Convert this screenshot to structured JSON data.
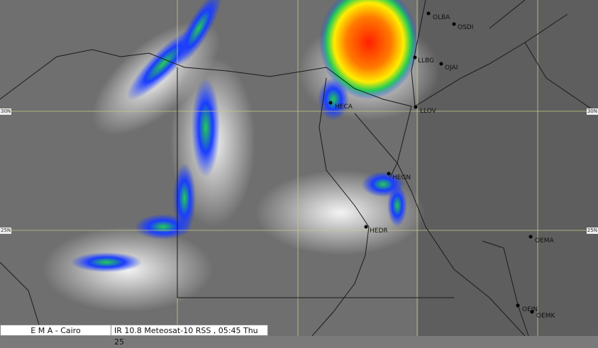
{
  "footer": {
    "agency": "E M A  -  Cairo",
    "product": "IR 10.8 Meteosat-10 RSS , 05:45  Thu 25"
  },
  "grid_labels": {
    "lat30": "30N",
    "lat25": "25N"
  },
  "stations": [
    {
      "id": "OLBA"
    },
    {
      "id": "OSDI"
    },
    {
      "id": "LLBG"
    },
    {
      "id": "OJAI"
    },
    {
      "id": "LLOV"
    },
    {
      "id": "HECA"
    },
    {
      "id": "HEGN"
    },
    {
      "id": "HEDR"
    },
    {
      "id": "OEMA"
    },
    {
      "id": "OEJN"
    },
    {
      "id": "OEMK"
    }
  ],
  "colors": {
    "grid": "#c8c88a",
    "border": "#1a1a1a",
    "cloud_cold": "#ff2a00",
    "cloud_mid": "#22cc44",
    "cloud_low": "#1a3cff"
  }
}
